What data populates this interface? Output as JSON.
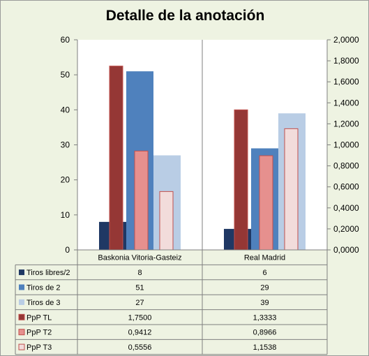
{
  "chart_data": {
    "type": "bar",
    "title": "Detalle de la anotación",
    "categories": [
      "Baskonia Vitoria-Gasteiz",
      "Real Madrid"
    ],
    "primary_axis": {
      "min": 0,
      "max": 60,
      "ticks": [
        "0",
        "10",
        "20",
        "30",
        "40",
        "50",
        "60"
      ]
    },
    "secondary_axis": {
      "min": 0,
      "max": 2,
      "ticks": [
        "0,0000",
        "0,2000",
        "0,4000",
        "0,6000",
        "0,8000",
        "1,0000",
        "1,2000",
        "1,4000",
        "1,6000",
        "1,8000",
        "2,0000"
      ]
    },
    "grid": "vertical separators only",
    "legend": "data table below chart",
    "series": [
      {
        "name": "Tiros libres/2",
        "axis": "primary",
        "color": "#1f3864",
        "values": [
          8,
          6
        ],
        "labels": [
          "8",
          "6"
        ]
      },
      {
        "name": "Tiros de 2",
        "axis": "primary",
        "color": "#4f81bd",
        "values": [
          51,
          29
        ],
        "labels": [
          "51",
          "29"
        ]
      },
      {
        "name": "Tiros de 3",
        "axis": "primary",
        "color": "#b9cde5",
        "values": [
          27,
          39
        ],
        "labels": [
          "27",
          "39"
        ]
      },
      {
        "name": "PpP TL",
        "axis": "secondary",
        "color": "#953735",
        "values": [
          1.75,
          1.3333
        ],
        "labels": [
          "1,7500",
          "1,3333"
        ]
      },
      {
        "name": "PpP T2",
        "axis": "secondary",
        "color": "#e6908e",
        "values": [
          0.9412,
          0.8966
        ],
        "labels": [
          "0,9412",
          "0,8966"
        ]
      },
      {
        "name": "PpP T3",
        "axis": "secondary",
        "color": "#f2dcdb",
        "values": [
          0.5556,
          1.1538
        ],
        "labels": [
          "0,5556",
          "1,1538"
        ]
      }
    ]
  }
}
